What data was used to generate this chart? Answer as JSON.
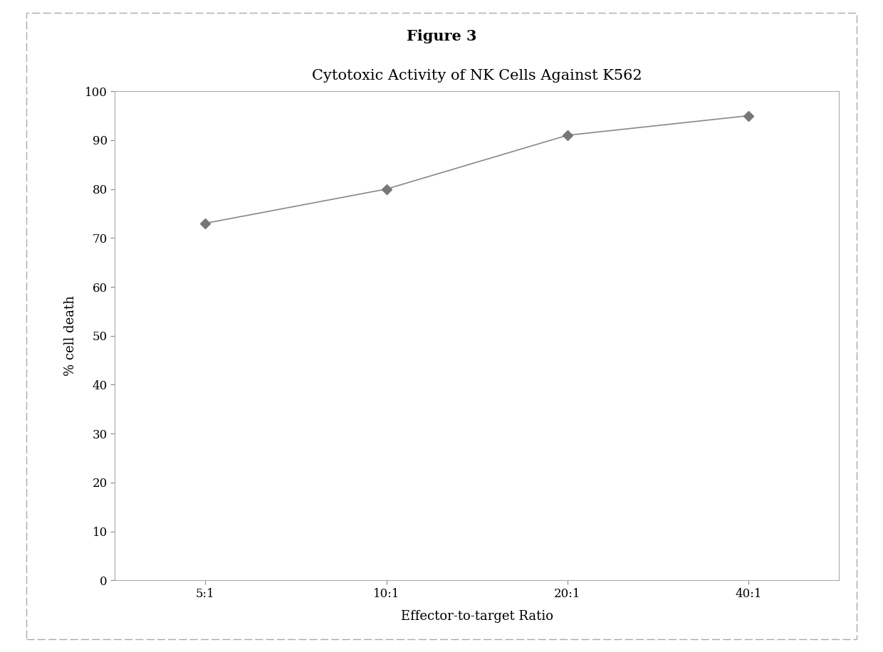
{
  "title": "Cytotoxic Activity of NK Cells Against K562",
  "figure_title": "Figure 3",
  "xlabel": "Effector-to-target Ratio",
  "ylabel": "% cell death",
  "x_labels": [
    "5:1",
    "10:1",
    "20:1",
    "40:1"
  ],
  "x_values": [
    1,
    2,
    3,
    4
  ],
  "y_values": [
    73,
    80,
    91,
    95
  ],
  "ylim": [
    0,
    100
  ],
  "yticks": [
    0,
    10,
    20,
    30,
    40,
    50,
    60,
    70,
    80,
    90,
    100
  ],
  "line_color": "#888888",
  "marker_color": "#777777",
  "marker_style": "D",
  "marker_size": 7,
  "line_width": 1.2,
  "bg_color": "#ffffff",
  "figure_bg": "#ffffff",
  "title_fontsize": 15,
  "axis_label_fontsize": 13,
  "tick_fontsize": 12,
  "figure_title_fontsize": 15
}
